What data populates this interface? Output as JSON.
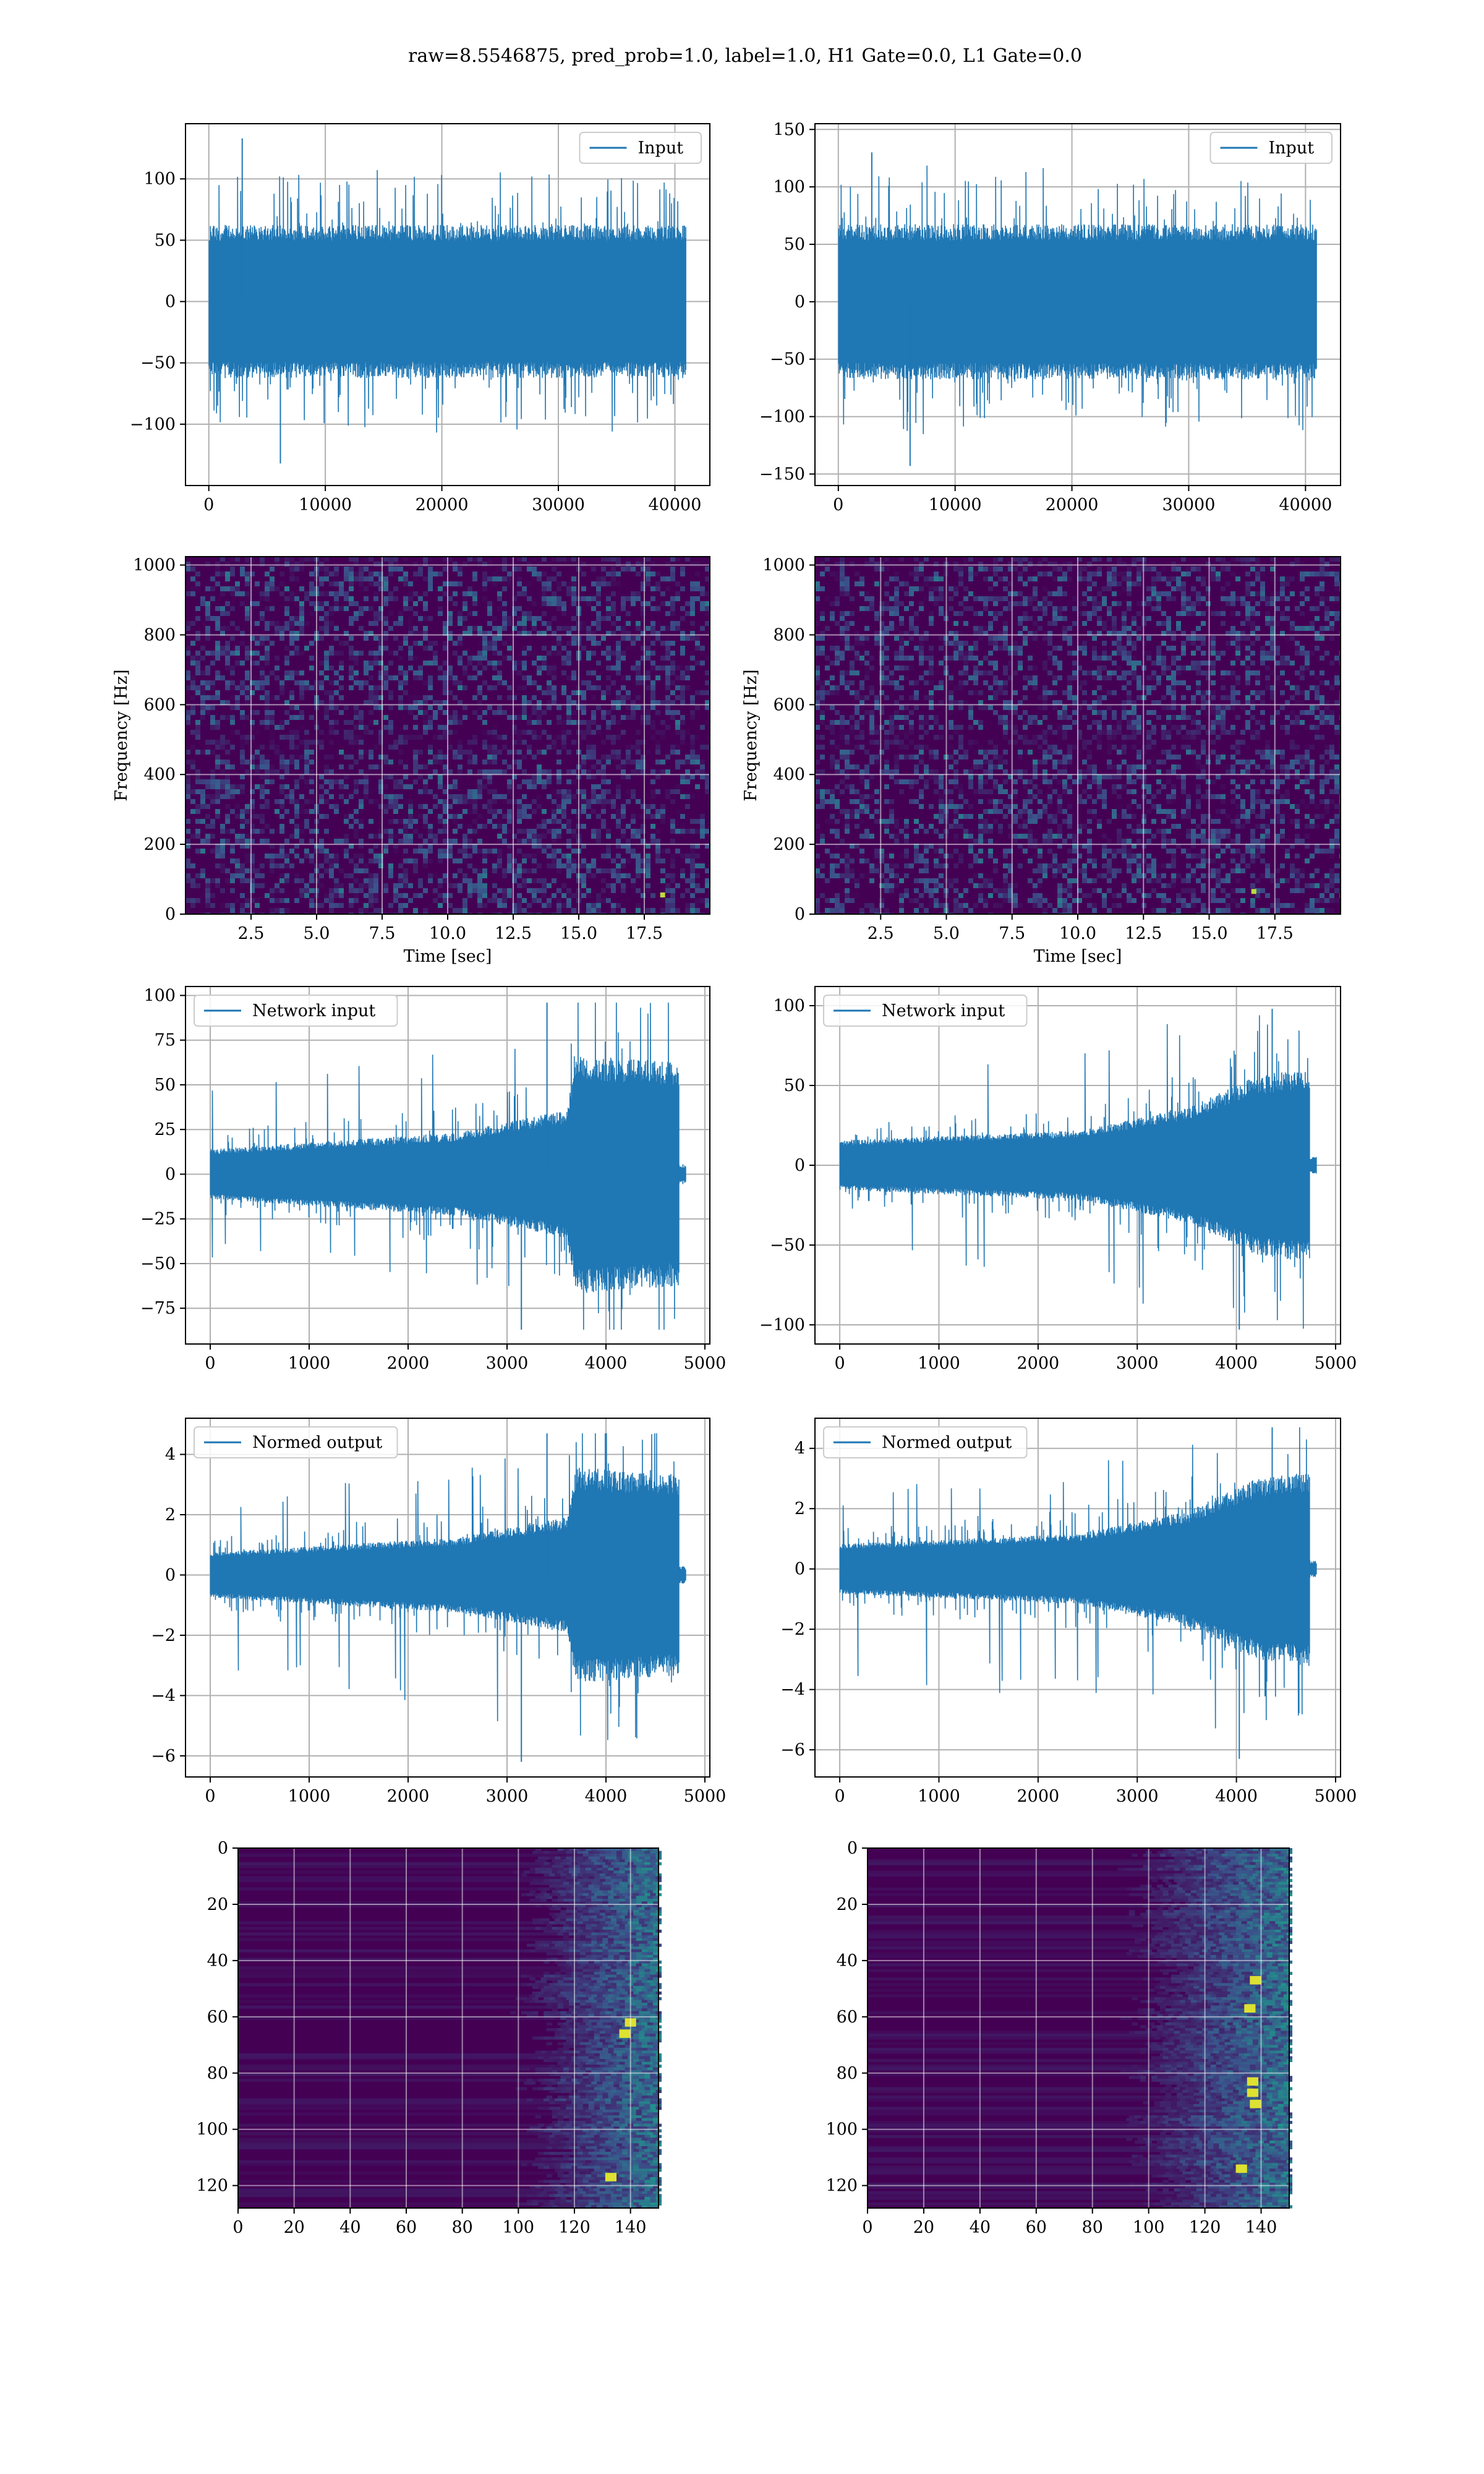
{
  "figure": {
    "suptitle": "raw=8.5546875, pred_prob=1.0, label=1.0, H1 Gate=0.0, L1 Gate=0.0",
    "line_color": "#1f77b4",
    "grid_color": "#b0b0b0",
    "colormap": [
      "#440154",
      "#3b528b",
      "#21918c",
      "#5ec962",
      "#fde725"
    ]
  },
  "chart_data": [
    {
      "id": "input-h1",
      "type": "line",
      "legend": "Input",
      "legend_loc": "upper right",
      "xlim": [
        -2000,
        43000
      ],
      "ylim": [
        -150,
        145
      ],
      "xticks": [
        0,
        10000,
        20000,
        30000,
        40000
      ],
      "xtick_labels": [
        "0",
        "10000",
        "20000",
        "30000",
        "40000"
      ],
      "yticks": [
        -100,
        -50,
        0,
        50,
        100
      ],
      "ytick_labels": [
        "−100",
        "−50",
        "0",
        "50",
        "100"
      ],
      "n_points": 40960,
      "band_min": -60,
      "band_max": 60,
      "spike_max": 133,
      "spike_min": -132,
      "envelope": [
        [
          0,
          1
        ],
        [
          1,
          1
        ]
      ],
      "tail": null
    },
    {
      "id": "input-l1",
      "type": "line",
      "legend": "Input",
      "legend_loc": "upper right",
      "xlim": [
        -2000,
        43000
      ],
      "ylim": [
        -160,
        155
      ],
      "xticks": [
        0,
        10000,
        20000,
        30000,
        40000
      ],
      "xtick_labels": [
        "0",
        "10000",
        "20000",
        "30000",
        "40000"
      ],
      "yticks": [
        -150,
        -100,
        -50,
        0,
        50,
        100,
        150
      ],
      "ytick_labels": [
        "−150",
        "−100",
        "−50",
        "0",
        "50",
        "100",
        "150"
      ],
      "n_points": 40960,
      "band_min": -65,
      "band_max": 65,
      "spike_max": 130,
      "spike_min": -143,
      "envelope": [
        [
          0,
          1
        ],
        [
          1,
          1
        ]
      ],
      "tail": null
    },
    {
      "id": "spec-h1",
      "type": "heatmap",
      "xlabel": "Time [sec]",
      "ylabel": "Frequency [Hz]",
      "xlim": [
        0,
        20
      ],
      "ylim": [
        0,
        1024
      ],
      "xticks": [
        2.5,
        5.0,
        7.5,
        10.0,
        12.5,
        15.0,
        17.5
      ],
      "xtick_labels": [
        "2.5",
        "5.0",
        "7.5",
        "10.0",
        "12.5",
        "15.0",
        "17.5"
      ],
      "yticks": [
        0,
        200,
        400,
        600,
        800,
        1000
      ],
      "ytick_labels": [
        "0",
        "200",
        "400",
        "600",
        "800",
        "1000"
      ],
      "hot_spot": [
        18.2,
        55
      ]
    },
    {
      "id": "spec-l1",
      "type": "heatmap",
      "xlabel": "Time [sec]",
      "ylabel": "Frequency [Hz]",
      "xlim": [
        0,
        20
      ],
      "ylim": [
        0,
        1024
      ],
      "xticks": [
        2.5,
        5.0,
        7.5,
        10.0,
        12.5,
        15.0,
        17.5
      ],
      "xtick_labels": [
        "2.5",
        "5.0",
        "7.5",
        "10.0",
        "12.5",
        "15.0",
        "17.5"
      ],
      "yticks": [
        0,
        200,
        400,
        600,
        800,
        1000
      ],
      "ytick_labels": [
        "0",
        "200",
        "400",
        "600",
        "800",
        "1000"
      ],
      "hot_spot": [
        16.7,
        65
      ]
    },
    {
      "id": "net-h1",
      "type": "line",
      "legend": "Network input",
      "legend_loc": "upper left",
      "xlim": [
        -250,
        5050
      ],
      "ylim": [
        -95,
        105
      ],
      "xticks": [
        0,
        1000,
        2000,
        3000,
        4000,
        5000
      ],
      "xtick_labels": [
        "0",
        "1000",
        "2000",
        "3000",
        "4000",
        "5000"
      ],
      "yticks": [
        -75,
        -50,
        -25,
        0,
        25,
        50,
        75,
        100
      ],
      "ytick_labels": [
        "−75",
        "−50",
        "−25",
        "0",
        "25",
        "50",
        "75",
        "100"
      ],
      "n_points": 4740,
      "band_min": -15,
      "band_max": 15,
      "spike_max": 96,
      "spike_min": -87,
      "envelope": [
        [
          0,
          0.9
        ],
        [
          2500,
          1.5
        ],
        [
          3600,
          2.3
        ],
        [
          3700,
          4.3
        ],
        [
          4740,
          4.0
        ]
      ],
      "tail": {
        "start": 4740,
        "end": 4810,
        "amp": 6
      }
    },
    {
      "id": "net-l1",
      "type": "line",
      "legend": "Network input",
      "legend_loc": "upper left",
      "xlim": [
        -250,
        5050
      ],
      "ylim": [
        -112,
        112
      ],
      "xticks": [
        0,
        1000,
        2000,
        3000,
        4000,
        5000
      ],
      "xtick_labels": [
        "0",
        "1000",
        "2000",
        "3000",
        "4000",
        "5000"
      ],
      "yticks": [
        -100,
        -50,
        0,
        50,
        100
      ],
      "ytick_labels": [
        "−100",
        "−50",
        "0",
        "50",
        "100"
      ],
      "n_points": 4740,
      "band_min": -15,
      "band_max": 15,
      "spike_max": 98,
      "spike_min": -103,
      "envelope": [
        [
          0,
          1.0
        ],
        [
          2400,
          1.4
        ],
        [
          3500,
          2.3
        ],
        [
          4200,
          3.6
        ],
        [
          4740,
          3.9
        ]
      ],
      "tail": {
        "start": 4740,
        "end": 4810,
        "amp": 6
      }
    },
    {
      "id": "norm-h1",
      "type": "line",
      "legend": "Normed output",
      "legend_loc": "upper left",
      "xlim": [
        -250,
        5050
      ],
      "ylim": [
        -6.7,
        5.2
      ],
      "xticks": [
        0,
        1000,
        2000,
        3000,
        4000,
        5000
      ],
      "xtick_labels": [
        "0",
        "1000",
        "2000",
        "3000",
        "4000",
        "5000"
      ],
      "yticks": [
        -6,
        -4,
        -2,
        0,
        2,
        4
      ],
      "ytick_labels": [
        "−6",
        "−4",
        "−2",
        "0",
        "2",
        "4"
      ],
      "n_points": 4740,
      "band_min": -0.8,
      "band_max": 0.8,
      "spike_max": 4.7,
      "spike_min": -6.2,
      "envelope": [
        [
          0,
          0.9
        ],
        [
          2500,
          1.5
        ],
        [
          3600,
          2.3
        ],
        [
          3700,
          4.3
        ],
        [
          4740,
          4.0
        ]
      ],
      "tail": {
        "start": 4740,
        "end": 4810,
        "amp": 0.3
      }
    },
    {
      "id": "norm-l1",
      "type": "line",
      "legend": "Normed output",
      "legend_loc": "upper left",
      "xlim": [
        -250,
        5050
      ],
      "ylim": [
        -6.9,
        5.0
      ],
      "xticks": [
        0,
        1000,
        2000,
        3000,
        4000,
        5000
      ],
      "xtick_labels": [
        "0",
        "1000",
        "2000",
        "3000",
        "4000",
        "5000"
      ],
      "yticks": [
        -6,
        -4,
        -2,
        0,
        2,
        4
      ],
      "ytick_labels": [
        "−6",
        "−4",
        "−2",
        "0",
        "2",
        "4"
      ],
      "n_points": 4740,
      "band_min": -0.8,
      "band_max": 0.8,
      "spike_max": 4.7,
      "spike_min": -6.3,
      "envelope": [
        [
          0,
          1.0
        ],
        [
          2400,
          1.4
        ],
        [
          3500,
          2.3
        ],
        [
          4200,
          3.6
        ],
        [
          4740,
          3.9
        ]
      ],
      "tail": {
        "start": 4740,
        "end": 4810,
        "amp": 0.3
      }
    },
    {
      "id": "feat-h1",
      "type": "heatmap",
      "xlim": [
        0,
        150
      ],
      "ylim": [
        128,
        0
      ],
      "xticks": [
        0,
        20,
        40,
        60,
        80,
        100,
        120,
        140
      ],
      "xtick_labels": [
        "0",
        "20",
        "40",
        "60",
        "80",
        "100",
        "120",
        "140"
      ],
      "yticks": [
        0,
        20,
        40,
        60,
        80,
        100,
        120
      ],
      "ytick_labels": [
        "0",
        "20",
        "40",
        "60",
        "80",
        "100",
        "120"
      ],
      "active_from": 95,
      "bright_spots": [
        [
          133,
          117
        ],
        [
          138,
          66
        ],
        [
          140,
          62
        ]
      ]
    },
    {
      "id": "feat-l1",
      "type": "heatmap",
      "xlim": [
        0,
        150
      ],
      "ylim": [
        128,
        0
      ],
      "xticks": [
        0,
        20,
        40,
        60,
        80,
        100,
        120,
        140
      ],
      "xtick_labels": [
        "0",
        "20",
        "40",
        "60",
        "80",
        "100",
        "120",
        "140"
      ],
      "yticks": [
        0,
        20,
        40,
        60,
        80,
        100,
        120
      ],
      "ytick_labels": [
        "0",
        "20",
        "40",
        "60",
        "80",
        "100",
        "120"
      ],
      "active_from": 85,
      "bright_spots": [
        [
          136,
          57
        ],
        [
          137,
          83
        ],
        [
          137,
          87
        ],
        [
          138,
          91
        ],
        [
          138,
          47
        ],
        [
          133,
          114
        ]
      ]
    }
  ]
}
